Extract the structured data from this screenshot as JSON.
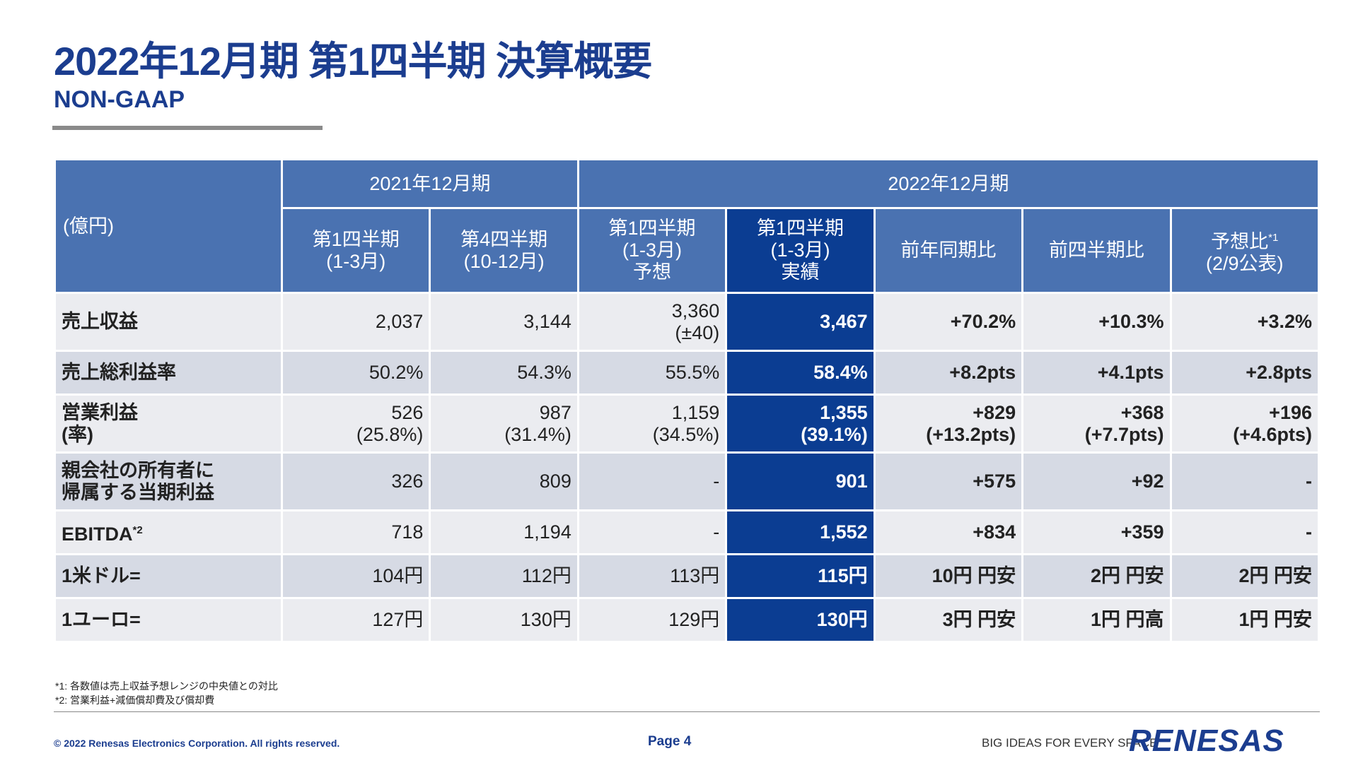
{
  "header": {
    "title": "2022年12月期 第1四半期 決算概要",
    "subtitle": "NON-GAAP"
  },
  "table": {
    "unit": "(億円)",
    "groups": [
      "2021年12月期",
      "2022年12月期"
    ],
    "columns": [
      {
        "lines": [
          "第1四半期",
          "(1-3月)"
        ]
      },
      {
        "lines": [
          "第4四半期",
          "(10-12月)"
        ]
      },
      {
        "lines": [
          "第1四半期",
          "(1-3月)",
          "予想"
        ]
      },
      {
        "lines": [
          "第1四半期",
          "(1-3月)",
          "実績"
        ]
      },
      {
        "lines": [
          "前年同期比"
        ]
      },
      {
        "lines": [
          "前四半期比"
        ]
      },
      {
        "lines": [
          "予想比",
          "(2/9公表)"
        ],
        "note": "*1"
      }
    ],
    "rows": [
      {
        "label": [
          "売上収益"
        ],
        "cells": [
          [
            "2,037"
          ],
          [
            "3,144"
          ],
          [
            "3,360",
            "(±40)"
          ],
          [
            "3,467"
          ],
          [
            "+70.2%"
          ],
          [
            "+10.3%"
          ],
          [
            "+3.2%"
          ]
        ]
      },
      {
        "label": [
          "売上総利益率"
        ],
        "cells": [
          [
            "50.2%"
          ],
          [
            "54.3%"
          ],
          [
            "55.5%"
          ],
          [
            "58.4%"
          ],
          [
            "+8.2pts"
          ],
          [
            "+4.1pts"
          ],
          [
            "+2.8pts"
          ]
        ]
      },
      {
        "label": [
          "営業利益",
          "(率)"
        ],
        "cells": [
          [
            "526",
            "(25.8%)"
          ],
          [
            "987",
            "(31.4%)"
          ],
          [
            "1,159",
            "(34.5%)"
          ],
          [
            "1,355",
            "(39.1%)"
          ],
          [
            "+829",
            "(+13.2pts)"
          ],
          [
            "+368",
            "(+7.7pts)"
          ],
          [
            "+196",
            "(+4.6pts)"
          ]
        ]
      },
      {
        "label": [
          "親会社の所有者に",
          "帰属する当期利益"
        ],
        "cells": [
          [
            "326"
          ],
          [
            "809"
          ],
          [
            "-"
          ],
          [
            "901"
          ],
          [
            "+575"
          ],
          [
            "+92"
          ],
          [
            "-"
          ]
        ]
      },
      {
        "label": [
          "EBITDA"
        ],
        "note": "*2",
        "cells": [
          [
            "718"
          ],
          [
            "1,194"
          ],
          [
            "-"
          ],
          [
            "1,552"
          ],
          [
            "+834"
          ],
          [
            "+359"
          ],
          [
            "-"
          ]
        ]
      },
      {
        "label": [
          "1米ドル="
        ],
        "cells": [
          [
            "104円"
          ],
          [
            "112円"
          ],
          [
            "113円"
          ],
          [
            "115円"
          ],
          [
            "10円 円安"
          ],
          [
            "2円 円安"
          ],
          [
            "2円 円安"
          ]
        ]
      },
      {
        "label": [
          "1ユーロ="
        ],
        "cells": [
          [
            "127円"
          ],
          [
            "130円"
          ],
          [
            "129円"
          ],
          [
            "130円"
          ],
          [
            "3円 円安"
          ],
          [
            "1円 円高"
          ],
          [
            "1円 円安"
          ]
        ]
      }
    ]
  },
  "footnotes": [
    "*1: 各数値は売上収益予想レンジの中央値との対比",
    "*2: 営業利益+減価償却費及び償却費"
  ],
  "footer": {
    "copyright": "© 2022 Renesas Electronics Corporation. All rights reserved.",
    "page": "Page 4",
    "tagline": "BIG IDEAS FOR EVERY SPACE",
    "logo": "RENESAS"
  }
}
